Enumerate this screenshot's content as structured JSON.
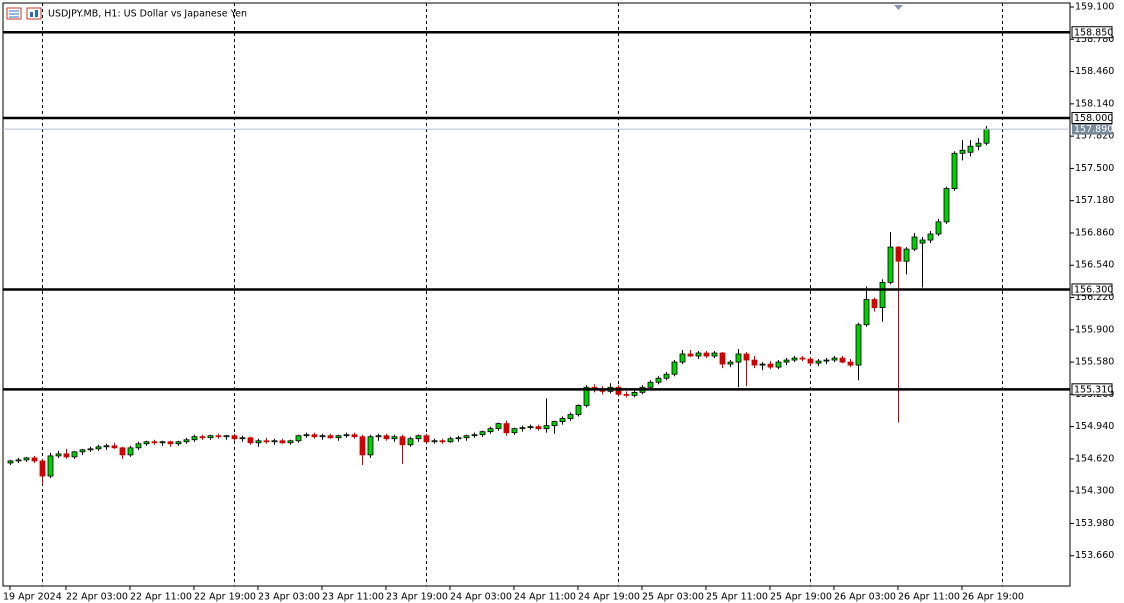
{
  "chart_data": {
    "type": "candlestick",
    "title": "USDJPY.MB, H1:  US Dollar vs Japanese Yen",
    "categories": [
      "19 Apr 2024",
      null,
      null,
      null,
      null,
      null,
      null,
      "22 Apr 03:00",
      null,
      null,
      null,
      null,
      null,
      null,
      null,
      "22 Apr 11:00",
      null,
      null,
      null,
      null,
      null,
      null,
      null,
      "22 Apr 19:00",
      null,
      null,
      null,
      null,
      null,
      null,
      null,
      "23 Apr 03:00",
      null,
      null,
      null,
      null,
      null,
      null,
      null,
      "23 Apr 11:00",
      null,
      null,
      null,
      null,
      null,
      null,
      null,
      "23 Apr 19:00",
      null,
      null,
      null,
      null,
      null,
      null,
      null,
      "24 Apr 03:00",
      null,
      null,
      null,
      null,
      null,
      null,
      null,
      "24 Apr 11:00",
      null,
      null,
      null,
      null,
      null,
      null,
      null,
      "24 Apr 19:00",
      null,
      null,
      null,
      null,
      null,
      null,
      null,
      "25 Apr 03:00",
      null,
      null,
      null,
      null,
      null,
      null,
      null,
      "25 Apr 11:00",
      null,
      null,
      null,
      null,
      null,
      null,
      null,
      "25 Apr 19:00",
      null,
      null,
      null,
      null,
      null,
      null,
      null,
      "26 Apr 03:00",
      null,
      null,
      null,
      null,
      null,
      null,
      null,
      "26 Apr 11:00",
      null,
      null,
      null,
      null,
      null,
      null,
      null,
      "26 Apr 19:00",
      null,
      null,
      null
    ],
    "open": [
      154.58,
      154.6,
      154.61,
      154.63,
      154.6,
      154.45,
      154.65,
      154.67,
      154.64,
      154.69,
      154.71,
      154.72,
      154.74,
      154.75,
      154.73,
      154.66,
      154.73,
      154.77,
      154.79,
      154.78,
      154.79,
      154.77,
      154.79,
      154.81,
      154.84,
      154.83,
      154.85,
      154.84,
      154.85,
      154.82,
      154.83,
      154.78,
      154.8,
      154.79,
      154.8,
      154.78,
      154.8,
      154.85,
      154.86,
      154.84,
      154.85,
      154.83,
      154.85,
      154.86,
      154.84,
      154.66,
      154.84,
      154.85,
      154.82,
      154.84,
      154.76,
      154.82,
      154.85,
      154.79,
      154.8,
      154.79,
      154.82,
      154.83,
      154.85,
      154.86,
      154.89,
      154.92,
      154.97,
      154.88,
      154.92,
      154.93,
      154.94,
      154.92,
      154.95,
      154.99,
      155.02,
      155.06,
      155.15,
      155.33,
      155.31,
      155.29,
      155.33,
      155.26,
      155.25,
      155.28,
      155.33,
      155.38,
      155.42,
      155.46,
      155.58,
      155.66,
      155.64,
      155.67,
      155.64,
      155.67,
      155.56,
      155.58,
      155.66,
      155.6,
      155.55,
      155.56,
      155.53,
      155.58,
      155.6,
      155.62,
      155.61,
      155.57,
      155.59,
      155.6,
      155.62,
      155.58,
      155.55,
      155.95,
      156.2,
      156.12,
      156.37,
      156.72,
      156.58,
      156.7,
      156.76,
      156.79,
      156.85,
      156.97,
      157.3,
      157.65,
      157.66,
      157.72,
      157.75
    ],
    "high": [
      154.61,
      154.63,
      154.64,
      154.65,
      154.62,
      154.68,
      154.7,
      154.72,
      154.7,
      154.72,
      154.74,
      154.76,
      154.77,
      154.78,
      154.74,
      154.75,
      154.79,
      154.8,
      154.81,
      154.8,
      154.8,
      154.8,
      154.83,
      154.86,
      154.86,
      154.86,
      154.87,
      154.86,
      154.87,
      154.85,
      154.84,
      154.82,
      154.83,
      154.82,
      154.82,
      154.81,
      154.86,
      154.88,
      154.88,
      154.87,
      154.87,
      154.86,
      154.88,
      154.88,
      154.86,
      154.86,
      154.87,
      154.87,
      154.86,
      154.86,
      154.84,
      154.86,
      154.87,
      154.82,
      154.82,
      154.84,
      154.85,
      154.86,
      154.88,
      154.9,
      154.94,
      154.98,
      155.0,
      154.93,
      154.95,
      154.96,
      154.96,
      155.22,
      155.0,
      155.04,
      155.08,
      155.16,
      155.35,
      155.36,
      155.34,
      155.37,
      155.35,
      155.29,
      155.3,
      155.35,
      155.4,
      155.44,
      155.48,
      155.6,
      155.7,
      155.7,
      155.69,
      155.69,
      155.69,
      155.68,
      155.6,
      155.71,
      155.68,
      155.64,
      155.58,
      155.59,
      155.6,
      155.62,
      155.64,
      155.64,
      155.63,
      155.61,
      155.62,
      155.64,
      155.64,
      155.61,
      155.97,
      156.33,
      156.22,
      156.4,
      156.87,
      156.73,
      156.72,
      156.86,
      156.82,
      156.88,
      157.0,
      157.32,
      157.67,
      157.78,
      157.78,
      157.8,
      157.92
    ],
    "low": [
      154.56,
      154.58,
      154.59,
      154.58,
      154.37,
      154.43,
      154.63,
      154.62,
      154.62,
      154.66,
      154.69,
      154.7,
      154.71,
      154.72,
      154.62,
      154.64,
      154.71,
      154.75,
      154.76,
      154.75,
      154.74,
      154.75,
      154.77,
      154.79,
      154.81,
      154.81,
      154.82,
      154.81,
      154.8,
      154.79,
      154.76,
      154.74,
      154.77,
      154.76,
      154.77,
      154.76,
      154.78,
      154.83,
      154.82,
      154.81,
      154.82,
      154.8,
      154.83,
      154.82,
      154.56,
      154.63,
      154.8,
      154.8,
      154.79,
      154.57,
      154.74,
      154.79,
      154.78,
      154.77,
      154.77,
      154.78,
      154.79,
      154.8,
      154.83,
      154.84,
      154.87,
      154.9,
      154.85,
      154.86,
      154.89,
      154.91,
      154.9,
      154.88,
      154.87,
      154.96,
      155.0,
      155.04,
      155.13,
      155.28,
      155.26,
      155.27,
      155.24,
      155.23,
      155.23,
      155.26,
      155.31,
      155.36,
      155.4,
      155.44,
      155.56,
      155.63,
      155.61,
      155.62,
      155.62,
      155.52,
      155.53,
      155.33,
      155.34,
      155.52,
      155.5,
      155.51,
      155.51,
      155.55,
      155.58,
      155.59,
      155.55,
      155.54,
      155.56,
      155.58,
      155.57,
      155.53,
      155.4,
      155.93,
      156.08,
      155.98,
      156.35,
      154.98,
      156.45,
      156.68,
      156.32,
      156.76,
      156.83,
      156.95,
      157.28,
      157.58,
      157.62,
      157.68,
      157.73
    ],
    "close": [
      154.6,
      154.61,
      154.63,
      154.6,
      154.45,
      154.65,
      154.67,
      154.64,
      154.69,
      154.71,
      154.72,
      154.74,
      154.75,
      154.73,
      154.66,
      154.73,
      154.77,
      154.79,
      154.78,
      154.79,
      154.77,
      154.79,
      154.81,
      154.84,
      154.83,
      154.85,
      154.84,
      154.85,
      154.82,
      154.83,
      154.78,
      154.8,
      154.79,
      154.8,
      154.78,
      154.8,
      154.85,
      154.86,
      154.84,
      154.85,
      154.83,
      154.85,
      154.86,
      154.84,
      154.66,
      154.84,
      154.85,
      154.82,
      154.84,
      154.76,
      154.82,
      154.85,
      154.79,
      154.8,
      154.79,
      154.82,
      154.83,
      154.85,
      154.86,
      154.89,
      154.92,
      154.97,
      154.88,
      154.92,
      154.93,
      154.94,
      154.92,
      154.95,
      154.99,
      155.02,
      155.06,
      155.15,
      155.33,
      155.31,
      155.29,
      155.33,
      155.26,
      155.25,
      155.28,
      155.33,
      155.38,
      155.42,
      155.46,
      155.58,
      155.66,
      155.64,
      155.67,
      155.64,
      155.67,
      155.56,
      155.58,
      155.66,
      155.6,
      155.55,
      155.56,
      155.53,
      155.58,
      155.6,
      155.62,
      155.61,
      155.57,
      155.59,
      155.6,
      155.62,
      155.58,
      155.55,
      155.95,
      156.2,
      156.12,
      156.37,
      156.72,
      156.58,
      156.7,
      156.82,
      156.79,
      156.85,
      156.97,
      157.3,
      157.65,
      157.68,
      157.72,
      157.75,
      157.89
    ],
    "up_color": "#00d000",
    "up_outline": "#000000",
    "down_color": "#d00000",
    "ylim": [
      153.36,
      159.14
    ],
    "yticks": [
      {
        "value": 159.1,
        "label": "159.100"
      },
      {
        "value": 158.78,
        "label": "158.780"
      },
      {
        "value": 158.46,
        "label": "158.460"
      },
      {
        "value": 158.14,
        "label": "158.140"
      },
      {
        "value": 157.82,
        "label": "157.820"
      },
      {
        "value": 157.5,
        "label": "157.500"
      },
      {
        "value": 157.18,
        "label": "157.180"
      },
      {
        "value": 156.86,
        "label": "156.860"
      },
      {
        "value": 156.54,
        "label": "156.540"
      },
      {
        "value": 156.22,
        "label": "156.220"
      },
      {
        "value": 155.9,
        "label": "155.900"
      },
      {
        "value": 155.58,
        "label": "155.580"
      },
      {
        "value": 155.26,
        "label": "155.260"
      },
      {
        "value": 154.94,
        "label": "154.940"
      },
      {
        "value": 154.62,
        "label": "154.620"
      },
      {
        "value": 154.3,
        "label": "154.300"
      },
      {
        "value": 153.98,
        "label": "153.980"
      },
      {
        "value": 153.66,
        "label": "153.660"
      }
    ],
    "levels": [
      {
        "value": 158.85,
        "label": "158.850"
      },
      {
        "value": 158.0,
        "label": "158.000"
      },
      {
        "value": 156.3,
        "label": "156.300"
      },
      {
        "value": 155.31,
        "label": "155.310"
      }
    ],
    "level_color": "#000000",
    "last_price": {
      "value": 157.89,
      "label": "157.890"
    },
    "last_price_color": "#778899"
  }
}
